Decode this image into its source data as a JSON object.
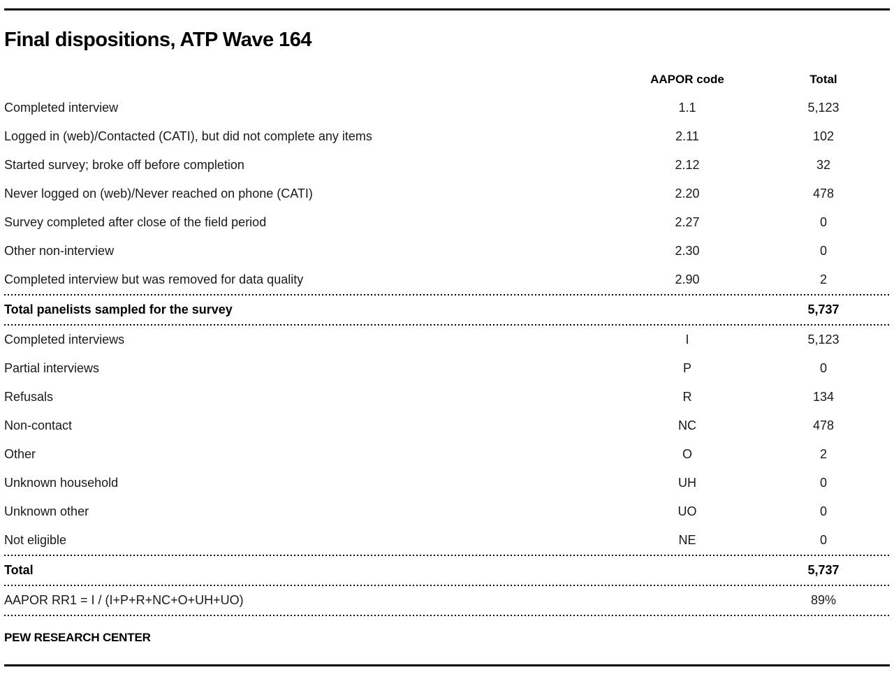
{
  "title": "Final dispositions, ATP Wave 164",
  "source": "PEW RESEARCH CENTER",
  "colors": {
    "rule": "#000000",
    "text": "#1a1a1a"
  },
  "chart_data": {
    "type": "table",
    "title": "Final dispositions, ATP Wave 164",
    "columns": [
      "",
      "AAPOR code",
      "Total"
    ],
    "rows": [
      [
        "Completed interview",
        "1.1",
        "5,123"
      ],
      [
        "Logged in (web)/Contacted (CATI), but did not complete any items",
        "2.11",
        "102"
      ],
      [
        "Started survey; broke off before completion",
        "2.12",
        "32"
      ],
      [
        "Never logged on (web)/Never reached on phone (CATI)",
        "2.20",
        "478"
      ],
      [
        "Survey completed after close of the field period",
        "2.27",
        "0"
      ],
      [
        "Other non-interview",
        "2.30",
        "0"
      ],
      [
        "Completed interview but was removed for data quality",
        "2.90",
        "2"
      ],
      [
        "Total panelists sampled for the survey",
        "",
        "5,737"
      ],
      [
        "Completed interviews",
        "I",
        "5,123"
      ],
      [
        "Partial interviews",
        "P",
        "0"
      ],
      [
        "Refusals",
        "R",
        "134"
      ],
      [
        "Non-contact",
        "NC",
        "478"
      ],
      [
        "Other",
        "O",
        "2"
      ],
      [
        "Unknown household",
        "UH",
        "0"
      ],
      [
        "Unknown other",
        "UO",
        "0"
      ],
      [
        "Not eligible",
        "NE",
        "0"
      ],
      [
        "Total",
        "",
        "5,737"
      ],
      [
        "AAPOR RR1 = I / (I+P+R+NC+O+UH+UO)",
        "",
        "89%"
      ]
    ]
  },
  "table": {
    "header": {
      "col_code": "AAPOR code",
      "col_total": "Total"
    },
    "disposition_rows": [
      {
        "label": "Completed interview",
        "code": "1.1",
        "total": "5,123"
      },
      {
        "label": "Logged in (web)/Contacted (CATI), but did not complete any items",
        "code": "2.11",
        "total": "102"
      },
      {
        "label": "Started survey; broke off before completion",
        "code": "2.12",
        "total": "32"
      },
      {
        "label": "Never logged on (web)/Never reached on phone (CATI)",
        "code": "2.20",
        "total": "478"
      },
      {
        "label": "Survey completed after close of the field period",
        "code": "2.27",
        "total": "0"
      },
      {
        "label": "Other non-interview",
        "code": "2.30",
        "total": "0"
      },
      {
        "label": "Completed interview but was removed for data quality",
        "code": "2.90",
        "total": "2"
      }
    ],
    "sampled_total_row": {
      "label": "Total panelists sampled for the survey",
      "code": "",
      "total": "5,737"
    },
    "aapor_rows": [
      {
        "label": "Completed interviews",
        "code": "I",
        "total": "5,123"
      },
      {
        "label": "Partial interviews",
        "code": "P",
        "total": "0"
      },
      {
        "label": "Refusals",
        "code": "R",
        "total": "134"
      },
      {
        "label": "Non-contact",
        "code": "NC",
        "total": "478"
      },
      {
        "label": "Other",
        "code": "O",
        "total": "2"
      },
      {
        "label": "Unknown household",
        "code": "UH",
        "total": "0"
      },
      {
        "label": "Unknown other",
        "code": "UO",
        "total": "0"
      },
      {
        "label": "Not eligible",
        "code": "NE",
        "total": "0"
      }
    ],
    "total_row": {
      "label": "Total",
      "code": "",
      "total": "5,737"
    },
    "response_rate_row": {
      "label": "AAPOR RR1 = I / (I+P+R+NC+O+UH+UO)",
      "code": "",
      "total": "89%"
    }
  }
}
